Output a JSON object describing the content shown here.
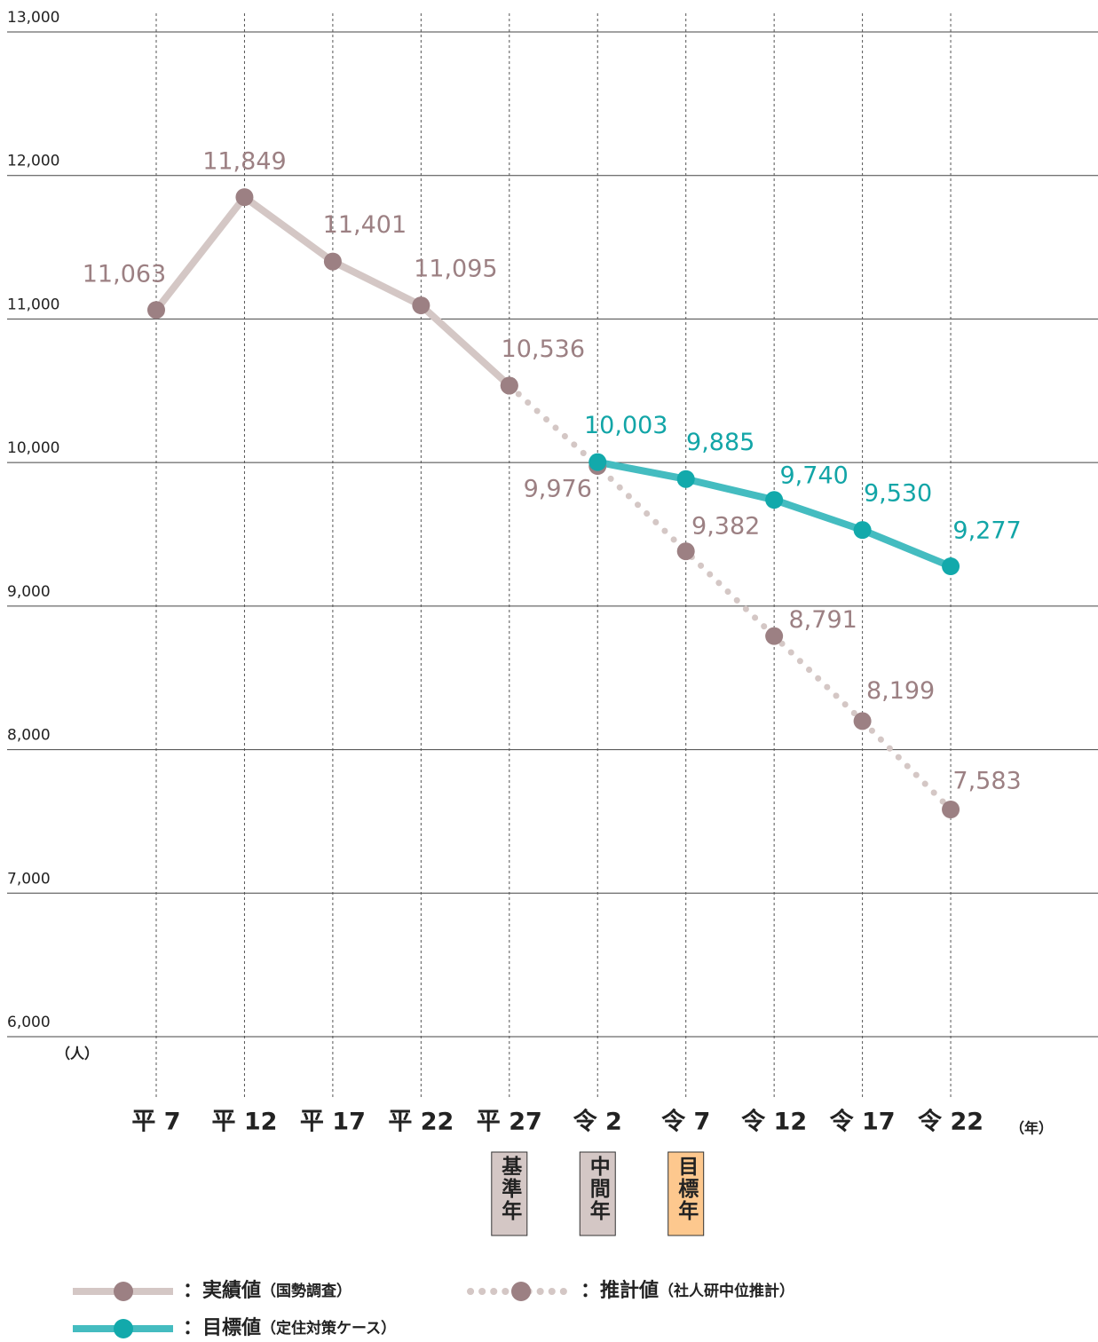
{
  "chart_data": {
    "type": "line",
    "y_unit": "（人）",
    "x_unit": "（年）",
    "categories": [
      "平 7",
      "平 12",
      "平 17",
      "平 22",
      "平 27",
      "令 2",
      "令 7",
      "令 12",
      "令 17",
      "令 22"
    ],
    "ylim": [
      6000,
      13000
    ],
    "yticks": [
      {
        "value": 6000,
        "label": "6,000"
      },
      {
        "value": 7000,
        "label": "7,000"
      },
      {
        "value": 8000,
        "label": "8,000"
      },
      {
        "value": 9000,
        "label": "9,000"
      },
      {
        "value": 10000,
        "label": "10,000"
      },
      {
        "value": 11000,
        "label": "11,000"
      },
      {
        "value": 12000,
        "label": "12,000"
      },
      {
        "value": 13000,
        "label": "13,000"
      }
    ],
    "grid": true,
    "legend_separator": "：",
    "series": [
      {
        "name": "実績値",
        "note": "（国勢調査）",
        "style": "solid",
        "color": "#d4c7c5",
        "marker_color": "#9c8083",
        "label_color": "#9c8083",
        "values": [
          11063,
          11849,
          11401,
          11095,
          10536,
          null,
          null,
          null,
          null,
          null
        ],
        "value_labels": [
          "11,063",
          "11,849",
          "11,401",
          "11,095",
          "10,536",
          null,
          null,
          null,
          null,
          null
        ]
      },
      {
        "name": "推計値",
        "note": "（社人研中位推計）",
        "style": "dotted",
        "color": "#d4c7c5",
        "marker_color": "#9c8083",
        "label_color": "#9c8083",
        "values": [
          null,
          null,
          null,
          null,
          10536,
          9976,
          9382,
          8791,
          8199,
          7583
        ],
        "value_labels": [
          null,
          null,
          null,
          null,
          null,
          "9,976",
          "9,382",
          "8,791",
          "8,199",
          "7,583"
        ]
      },
      {
        "name": "目標値",
        "note": "（定住対策ケース）",
        "style": "solid",
        "color": "#44bcc0",
        "marker_color": "#12a9ab",
        "label_color": "#12a5a7",
        "values": [
          null,
          null,
          null,
          null,
          null,
          10003,
          9885,
          9740,
          9530,
          9277
        ],
        "value_labels": [
          null,
          null,
          null,
          null,
          null,
          "10,003",
          "9,885",
          "9,740",
          "9,530",
          "9,277"
        ]
      }
    ],
    "badges": [
      {
        "category": 4,
        "label": "基準年",
        "color": "#d4c7c5"
      },
      {
        "category": 5,
        "label": "中間年",
        "color": "#d4c7c5"
      },
      {
        "category": 6,
        "label": "目標年",
        "color": "#fdc88e"
      }
    ]
  }
}
